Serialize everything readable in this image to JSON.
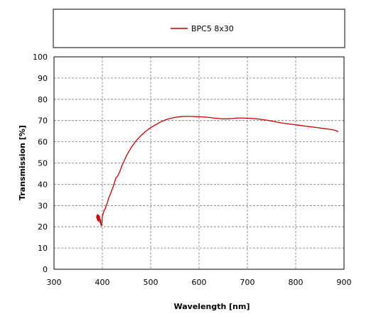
{
  "chart_data": {
    "type": "line",
    "xlabel": "Wavelength [nm]",
    "ylabel": "Transmission [%]",
    "xlim": [
      300,
      900
    ],
    "ylim": [
      0,
      100
    ],
    "xticks": [
      300,
      400,
      500,
      600,
      700,
      800,
      900
    ],
    "yticks": [
      0,
      10,
      20,
      30,
      40,
      50,
      60,
      70,
      80,
      90,
      100
    ],
    "grid": true,
    "legend_position": "top",
    "series": [
      {
        "name": "BPC5 8x30",
        "color": "#cc0000",
        "x": [
          388,
          389,
          390,
          391,
          392,
          393,
          394,
          395,
          396,
          397,
          398,
          399,
          400,
          402,
          404,
          406,
          408,
          410,
          413,
          416,
          420,
          424,
          428,
          432,
          436,
          440,
          445,
          450,
          455,
          460,
          465,
          470,
          480,
          490,
          500,
          510,
          520,
          530,
          540,
          550,
          560,
          570,
          580,
          590,
          600,
          610,
          620,
          630,
          640,
          650,
          660,
          670,
          680,
          690,
          700,
          710,
          720,
          730,
          740,
          750,
          760,
          770,
          780,
          790,
          800,
          810,
          820,
          830,
          840,
          850,
          860,
          870,
          880,
          888
        ],
        "y": [
          24.0,
          25.5,
          23.0,
          25.8,
          22.5,
          25.2,
          24.8,
          22.0,
          23.5,
          21.0,
          20.5,
          22.0,
          25.0,
          26.5,
          28.0,
          28.5,
          30.0,
          31.0,
          33.5,
          35.0,
          37.5,
          40.0,
          43.0,
          44.0,
          46.0,
          48.5,
          51.0,
          53.5,
          55.5,
          57.5,
          59.0,
          60.5,
          63.0,
          65.0,
          66.7,
          68.0,
          69.3,
          70.3,
          71.0,
          71.5,
          71.8,
          72.0,
          72.0,
          71.9,
          71.8,
          71.7,
          71.5,
          71.2,
          71.0,
          70.8,
          70.8,
          71.0,
          71.2,
          71.2,
          71.1,
          71.0,
          70.8,
          70.5,
          70.2,
          69.8,
          69.3,
          68.9,
          68.6,
          68.3,
          68.0,
          67.7,
          67.4,
          67.1,
          66.8,
          66.5,
          66.2,
          65.9,
          65.5,
          64.8
        ]
      }
    ]
  }
}
